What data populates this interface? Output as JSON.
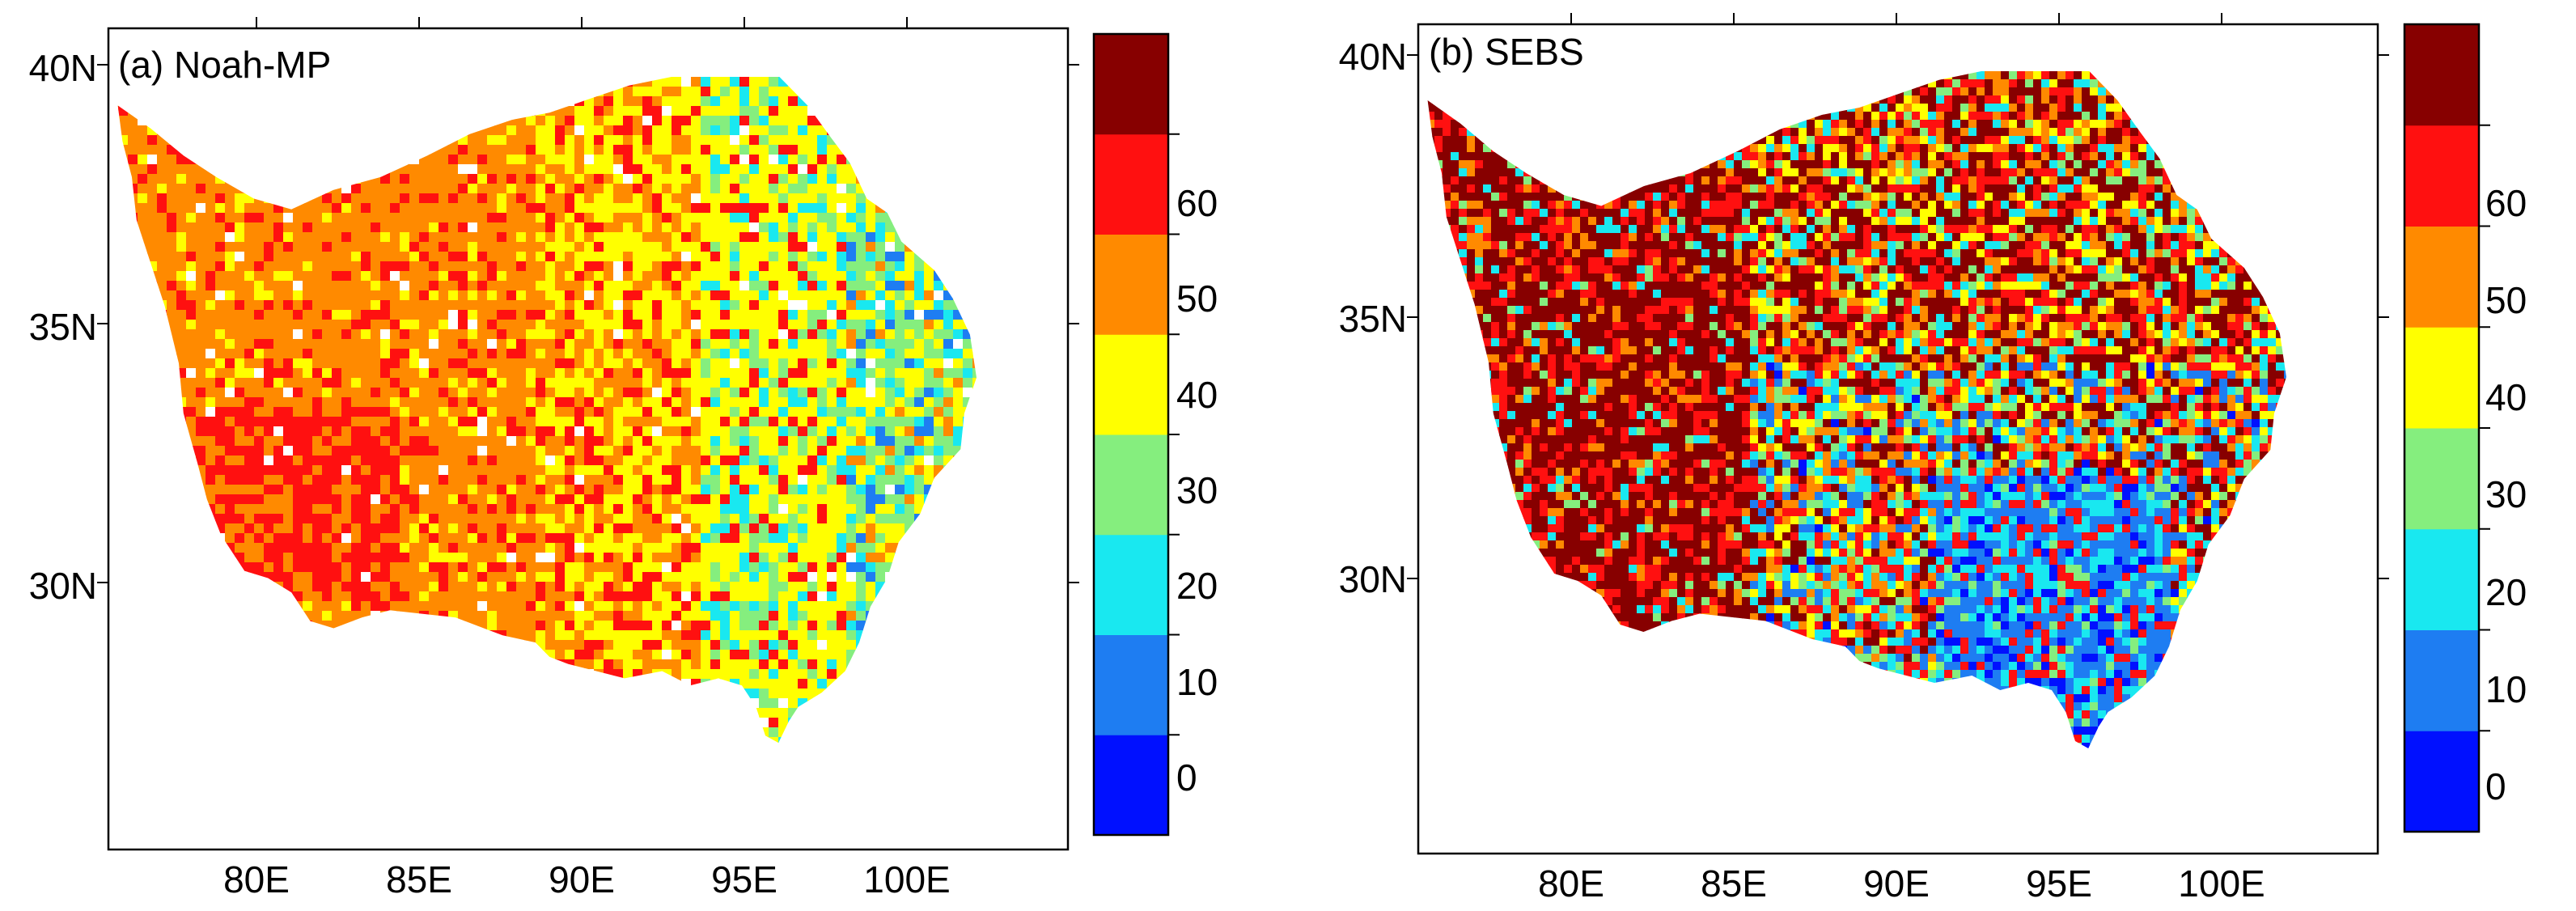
{
  "panels": [
    {
      "id": "noah",
      "label": "(a) Noah-MP",
      "lat_ticks": [
        "40N",
        "35N",
        "30N"
      ],
      "lon_ticks": [
        "80E",
        "85E",
        "90E",
        "95E",
        "100E"
      ],
      "colorbar": {
        "labels": [
          "0",
          "10",
          "20",
          "30",
          "40",
          "50",
          "60"
        ],
        "colors": [
          "#0010ff",
          "#1e7df2",
          "#19e8f0",
          "#85ee7e",
          "#ffff00",
          "#ff8a00",
          "#ff1010",
          "#870000"
        ]
      },
      "palette_weights": [
        0.005,
        0.015,
        0.04,
        0.09,
        0.35,
        0.38,
        0.12,
        0.0
      ]
    },
    {
      "id": "sebs",
      "label": "(b) SEBS",
      "lat_ticks": [
        "40N",
        "35N",
        "30N"
      ],
      "lon_ticks": [
        "80E",
        "85E",
        "90E",
        "95E",
        "100E"
      ],
      "colorbar": {
        "labels": [
          "0",
          "10",
          "20",
          "30",
          "40",
          "50",
          "60"
        ],
        "colors": [
          "#0010ff",
          "#1e7df2",
          "#19e8f0",
          "#85ee7e",
          "#ffff00",
          "#ff8a00",
          "#ff1010",
          "#870000"
        ]
      },
      "palette_weights": [
        0.02,
        0.12,
        0.15,
        0.1,
        0.11,
        0.12,
        0.18,
        0.2
      ]
    }
  ]
}
